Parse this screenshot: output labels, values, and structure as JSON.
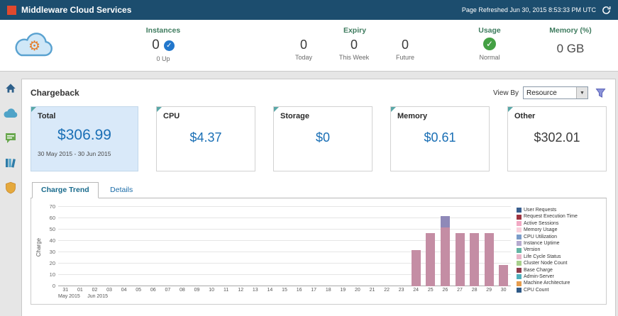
{
  "colors": {
    "header_bg": "#1c4d6e",
    "accent_blue": "#1a6fb5",
    "label_green": "#3e7b5e",
    "highlight_card_bg": "#d9e9f9"
  },
  "header": {
    "title": "Middleware Cloud Services",
    "refreshed": "Page Refreshed Jun 30, 2015 8:53:33 PM UTC"
  },
  "summary": {
    "instances": {
      "label": "Instances",
      "value": "0",
      "check": "✓",
      "sub": "0 Up"
    },
    "expiry": {
      "label": "Expiry",
      "items": [
        {
          "value": "0",
          "label": "Today"
        },
        {
          "value": "0",
          "label": "This Week"
        },
        {
          "value": "0",
          "label": "Future"
        }
      ]
    },
    "usage": {
      "label": "Usage",
      "check": "✓",
      "status": "Normal"
    },
    "memory": {
      "label": "Memory (%)",
      "value": "0 GB"
    }
  },
  "sidebar": {
    "items": [
      {
        "name": "home-icon"
      },
      {
        "name": "cloud-icon"
      },
      {
        "name": "messages-icon"
      },
      {
        "name": "library-icon"
      },
      {
        "name": "security-shield-icon"
      }
    ]
  },
  "chargeback": {
    "title": "Chargeback",
    "view_by_label": "View By",
    "view_by_value": "Resource",
    "select_arrow": "▼",
    "cards": [
      {
        "label": "Total",
        "value": "$306.99",
        "sub": "30 May 2015 - 30 Jun 2015"
      },
      {
        "label": "CPU",
        "value": "$4.37"
      },
      {
        "label": "Storage",
        "value": "$0"
      },
      {
        "label": "Memory",
        "value": "$0.61"
      },
      {
        "label": "Other",
        "value": "$302.01"
      }
    ],
    "tabs": [
      {
        "label": "Charge Trend",
        "active": true
      },
      {
        "label": "Details",
        "active": false
      }
    ]
  },
  "chart_data": {
    "type": "bar",
    "stacked": true,
    "title": "",
    "xlabel": "",
    "ylabel": "Charge",
    "ylim": [
      0,
      70
    ],
    "yticks": [
      0,
      10,
      20,
      30,
      40,
      50,
      60,
      70
    ],
    "grid": true,
    "legend_position": "right",
    "categories": [
      "31",
      "01",
      "02",
      "03",
      "04",
      "05",
      "06",
      "07",
      "08",
      "09",
      "10",
      "11",
      "12",
      "13",
      "14",
      "15",
      "16",
      "17",
      "18",
      "19",
      "20",
      "21",
      "22",
      "23",
      "24",
      "25",
      "26",
      "27",
      "28",
      "29",
      "30"
    ],
    "month_labels": [
      {
        "text": "May 2015",
        "index": 0
      },
      {
        "text": "Jun 2015",
        "index": 2
      }
    ],
    "series": [
      {
        "name": "charge-mauve-segment",
        "color": "#c48da4",
        "values": [
          0,
          0,
          0,
          0,
          0,
          0,
          0,
          0,
          0,
          0,
          0,
          0,
          0,
          0,
          0,
          0,
          0,
          0,
          0,
          0,
          0,
          0,
          0,
          0,
          32,
          47,
          52,
          47,
          47,
          47,
          19
        ]
      },
      {
        "name": "charge-purple-segment",
        "color": "#8f89b8",
        "values": [
          0,
          0,
          0,
          0,
          0,
          0,
          0,
          0,
          0,
          0,
          0,
          0,
          0,
          0,
          0,
          0,
          0,
          0,
          0,
          0,
          0,
          0,
          0,
          0,
          0,
          0,
          10,
          0,
          0,
          0,
          0
        ]
      }
    ],
    "legend": [
      {
        "label": "User Requests",
        "color": "#3a5f8f"
      },
      {
        "label": "Request Execution Time",
        "color": "#9e3340"
      },
      {
        "label": "Active Sessions",
        "color": "#f2a9c4"
      },
      {
        "label": "Memory Usage",
        "color": "#f8cfdc"
      },
      {
        "label": "CPU Utilization",
        "color": "#7b9cc9"
      },
      {
        "label": "Instance Uptime",
        "color": "#b5aacf"
      },
      {
        "label": "Version",
        "color": "#63b5a4"
      },
      {
        "label": "Life Cycle Status",
        "color": "#eab6c9"
      },
      {
        "label": "Cluster Node Count",
        "color": "#a8d08d"
      },
      {
        "label": "Base Charge",
        "color": "#8e3b4b"
      },
      {
        "label": "Admin-Server",
        "color": "#4fb0bd"
      },
      {
        "label": "Machine Architecture",
        "color": "#e69d4f"
      },
      {
        "label": "CPU Count",
        "color": "#2f5a87"
      }
    ]
  }
}
